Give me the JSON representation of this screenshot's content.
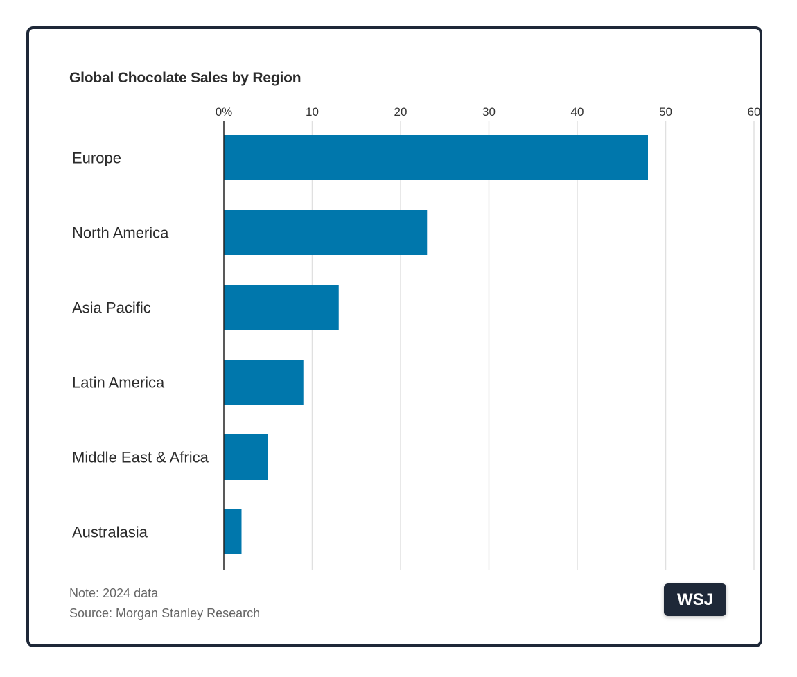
{
  "chart_data": {
    "type": "bar",
    "orientation": "horizontal",
    "title": "Global Chocolate Sales by Region",
    "categories": [
      "Europe",
      "North America",
      "Asia Pacific",
      "Latin America",
      "Middle East & Africa",
      "Australasia"
    ],
    "values": [
      48,
      23,
      13,
      9,
      5,
      2
    ],
    "xlim": [
      0,
      60
    ],
    "xticks": [
      0,
      10,
      20,
      30,
      40,
      50,
      60
    ],
    "xtick_labels": [
      "0%",
      "10",
      "20",
      "30",
      "40",
      "50",
      "60"
    ],
    "grid": true,
    "bar_color": "#0077ac",
    "gridline_color": "#e0e0e0"
  },
  "footer": {
    "note": "Note: 2024 data",
    "source": "Source: Morgan Stanley Research",
    "logo_text": "WSJ"
  },
  "colors": {
    "border": "#1e2838",
    "logo_bg": "#1e2838"
  }
}
